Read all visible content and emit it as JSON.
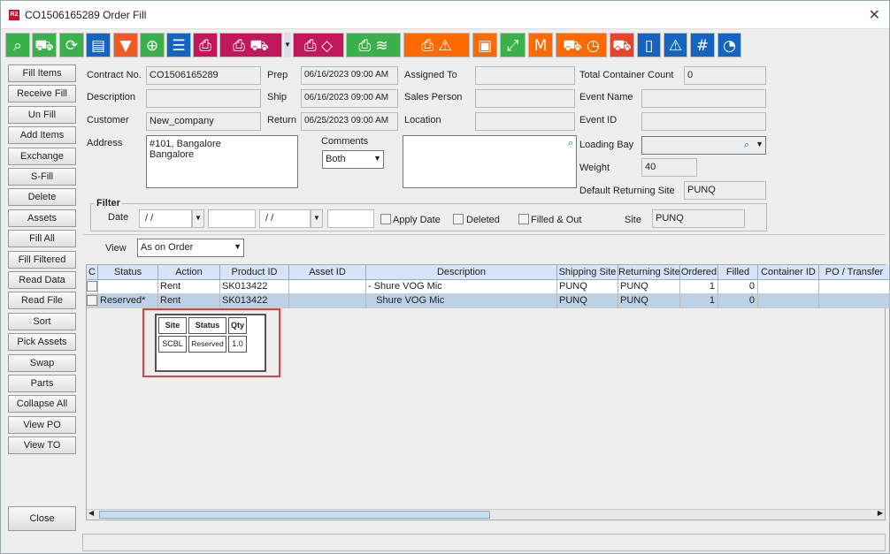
{
  "window": {
    "title": "CO1506165289 Order Fill",
    "logo": "R2",
    "close": "✕"
  },
  "toolbar": [
    {
      "icon": "search-icon",
      "glyph": "⌕",
      "color": "#3ab14a"
    },
    {
      "icon": "hand-truck-icon",
      "glyph": "⛟",
      "color": "#3ab14a"
    },
    {
      "icon": "refresh-icon",
      "glyph": "⟳",
      "color": "#3ab14a"
    },
    {
      "icon": "comment-icon",
      "glyph": "▤",
      "color": "#1565c0"
    },
    {
      "icon": "filter-icon",
      "glyph": "▼",
      "color": "#f05a28"
    },
    {
      "icon": "zoom-in-icon",
      "glyph": "⊕",
      "color": "#3ab14a"
    },
    {
      "icon": "list-icon",
      "glyph": "☰",
      "color": "#1565c0"
    },
    {
      "icon": "print-icon",
      "glyph": "⎙",
      "color": "#c2185b"
    },
    {
      "icon": "print-truck-icon",
      "glyph": "⎙ ⛟",
      "color": "#c2185b"
    },
    {
      "icon": "print-bucket-icon",
      "glyph": "⎙ ◇",
      "color": "#c2185b"
    },
    {
      "icon": "print-layers-icon",
      "glyph": "⎙ ≋",
      "color": "#3ab14a"
    },
    {
      "icon": "print-warning-icon",
      "glyph": "⎙ ⚠",
      "color": "#ff6a00"
    },
    {
      "icon": "box-icon",
      "glyph": "▣",
      "color": "#ff6a00"
    },
    {
      "icon": "expand-icon",
      "glyph": "⤢",
      "color": "#3ab14a"
    },
    {
      "icon": "box-m-icon",
      "glyph": "M",
      "color": "#ff6a00"
    },
    {
      "icon": "truck-clock-icon",
      "glyph": "⛟ ◷",
      "color": "#ff6a00"
    },
    {
      "icon": "truck-icon",
      "glyph": "⛟",
      "color": "#e8442b"
    },
    {
      "icon": "book-icon",
      "glyph": "▯",
      "color": "#1565c0"
    },
    {
      "icon": "warning-eye-icon",
      "glyph": "⚠",
      "color": "#1565c0"
    },
    {
      "icon": "hash-icon",
      "glyph": "#",
      "color": "#1565c0"
    },
    {
      "icon": "gauge-icon",
      "glyph": "◔",
      "color": "#1565c0"
    }
  ],
  "sidebar": [
    "Fill Items",
    "Receive Fill",
    "Un Fill",
    "Add Items",
    "Exchange",
    "S-Fill",
    "Delete",
    "Assets",
    "Fill  All",
    "Fill Filtered",
    "Read Data",
    "Read File",
    "Sort",
    "Pick Assets",
    "Swap",
    "Parts",
    "Collapse All",
    "View PO",
    "View TO"
  ],
  "close_label": "Close",
  "form": {
    "contract_no_label": "Contract No.",
    "contract_no": "CO1506165289",
    "description_label": "Description",
    "description": "",
    "customer_label": "Customer",
    "customer": "New_company",
    "address_label": "Address",
    "address": "#101, Bangalore\nBangalore",
    "prep_label": "Prep",
    "prep": "06/16/2023 09:00 AM",
    "ship_label": "Ship",
    "ship": "06/16/2023 09:00 AM",
    "return_label": "Return",
    "return": "06/25/2023 09:00 AM",
    "comments_label": "Comments",
    "comments_select": "Both",
    "assigned_to_label": "Assigned To",
    "sales_person_label": "Sales Person",
    "location_label": "Location",
    "total_container_label": "Total Container Count",
    "total_container": "0",
    "event_name_label": "Event Name",
    "event_id_label": "Event ID",
    "loading_bay_label": "Loading Bay",
    "weight_label": "Weight",
    "weight": "40",
    "default_returning_site_label": "Default Returning Site",
    "default_returning_site": "PUNQ"
  },
  "filter": {
    "title": "Filter",
    "date_label": "Date",
    "date_from": " / /",
    "date_to": " / /",
    "apply_date": "Apply Date",
    "deleted": "Deleted",
    "filled_out": "Filled & Out",
    "site_label": "Site",
    "site": "PUNQ"
  },
  "view": {
    "label": "View",
    "value": "As on Order"
  },
  "table": {
    "columns": [
      "C",
      "Status",
      "Action",
      "Product ID",
      "Asset ID",
      "Description",
      "Shipping Site",
      "Returning Site",
      "Ordered",
      "Filled",
      "Container ID",
      "PO / Transfer"
    ],
    "rows": [
      [
        "",
        "",
        "Rent",
        "SK013422",
        "",
        "- Shure VOG Mic",
        "PUNQ",
        "PUNQ",
        "1",
        "0",
        "",
        ""
      ],
      [
        "",
        "Reserved*",
        "Rent",
        "SK013422",
        "",
        "   Shure VOG Mic",
        "PUNQ",
        "PUNQ",
        "1",
        "0",
        "",
        ""
      ]
    ]
  },
  "popup": {
    "headers": [
      "Site",
      "Status",
      "Qty"
    ],
    "row": [
      "SCBL",
      "Reserved",
      "1.0"
    ]
  }
}
